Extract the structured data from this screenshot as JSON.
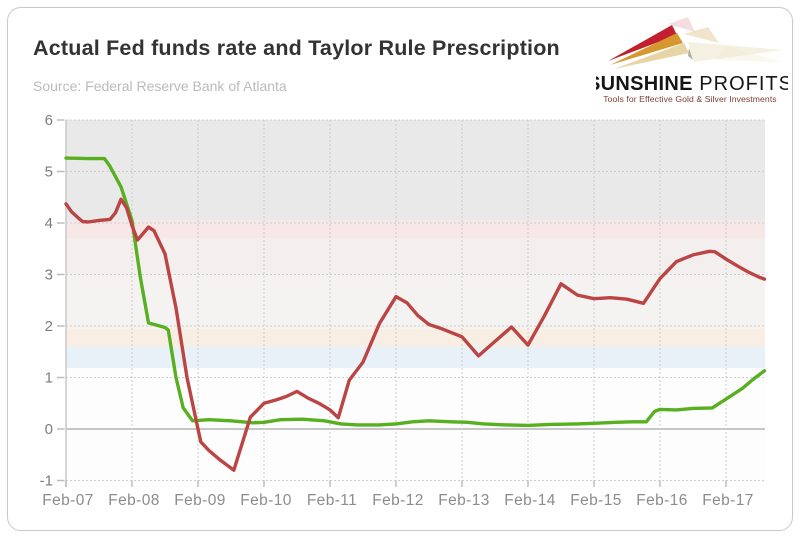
{
  "card": {
    "title": "Actual Fed funds rate and Taylor Rule Prescription",
    "source": "Source: Federal Reserve Bank of Atlanta"
  },
  "logo": {
    "name_bold": "SUNSHINE",
    "name_light": " PROFITS",
    "tagline": "Tools for Effective Gold & Silver Investments",
    "colors": {
      "ray_red": "#c2202f",
      "ray_gold": "#d6982e",
      "ray_cream": "#e8d5a6",
      "ghost_pink": "#eab3b8",
      "ghost_tan": "#e2c48f",
      "ghost_cream": "#efe7cf",
      "text": "#161616",
      "tagline": "#7d4031"
    }
  },
  "chart_data": {
    "type": "line",
    "title": "Actual Fed funds rate and Taylor Rule Prescription",
    "source": "Source: Federal Reserve Bank of Atlanta",
    "xlabel": "",
    "ylabel": "",
    "legend": "none",
    "grid": "dashed",
    "x_axis": {
      "unit": "months since Feb-2007",
      "range_months": [
        0,
        127
      ],
      "tick_months": [
        0,
        12,
        24,
        36,
        48,
        60,
        72,
        84,
        96,
        108,
        120
      ],
      "tick_labels": [
        "Feb-07",
        "Feb-08",
        "Feb-09",
        "Feb-10",
        "Feb-11",
        "Feb-12",
        "Feb-13",
        "Feb-14",
        "Feb-15",
        "Feb-16",
        "Feb-17"
      ]
    },
    "y_axis": {
      "range": [
        -1,
        6
      ],
      "ticks": [
        6,
        5,
        4,
        3,
        2,
        1,
        0,
        -1
      ],
      "zero_line": true
    },
    "colors": {
      "grid": "#cccccc",
      "zero_line": "#c6c6c6",
      "axis": "#c9c9c9",
      "tick": "#bdbdbd",
      "x_label": "#8c8c8c",
      "y_label": "#7c7c7c"
    },
    "background_bands": [
      {
        "from": 4.05,
        "to": 6.0,
        "color": "#e9e9e9"
      },
      {
        "from": 3.7,
        "to": 4.05,
        "color": "#f8e7e7"
      },
      {
        "from": 3.0,
        "to": 3.7,
        "color": "#f3efee"
      },
      {
        "from": 1.95,
        "to": 3.0,
        "color": "#f4f3f2"
      },
      {
        "from": 1.6,
        "to": 1.95,
        "color": "#f9eee3"
      },
      {
        "from": 1.18,
        "to": 1.6,
        "color": "#e9f1f8"
      },
      {
        "from": -1.0,
        "to": 1.18,
        "color": "#fdfdfd"
      }
    ],
    "series": [
      {
        "name": "Actual Fed funds rate",
        "color": "#58b020",
        "width": 3.4,
        "points": [
          [
            0,
            5.26
          ],
          [
            4,
            5.25
          ],
          [
            7,
            5.25
          ],
          [
            8,
            5.1
          ],
          [
            10,
            4.7
          ],
          [
            12,
            4.05
          ],
          [
            13.5,
            2.95
          ],
          [
            15,
            2.06
          ],
          [
            18,
            1.97
          ],
          [
            18.6,
            1.92
          ],
          [
            20,
            1.0
          ],
          [
            21.3,
            0.41
          ],
          [
            23,
            0.16
          ],
          [
            26,
            0.18
          ],
          [
            30,
            0.16
          ],
          [
            34,
            0.12
          ],
          [
            36,
            0.13
          ],
          [
            39,
            0.18
          ],
          [
            43,
            0.19
          ],
          [
            47,
            0.16
          ],
          [
            50,
            0.1
          ],
          [
            53,
            0.08
          ],
          [
            57,
            0.08
          ],
          [
            60,
            0.1
          ],
          [
            63,
            0.14
          ],
          [
            66,
            0.16
          ],
          [
            70,
            0.14
          ],
          [
            73,
            0.13
          ],
          [
            76,
            0.1
          ],
          [
            80,
            0.08
          ],
          [
            84,
            0.07
          ],
          [
            88,
            0.09
          ],
          [
            93,
            0.1
          ],
          [
            96,
            0.11
          ],
          [
            100,
            0.13
          ],
          [
            103,
            0.14
          ],
          [
            105.5,
            0.14
          ],
          [
            107,
            0.34
          ],
          [
            108,
            0.38
          ],
          [
            111,
            0.37
          ],
          [
            114,
            0.4
          ],
          [
            117.5,
            0.41
          ],
          [
            120,
            0.58
          ],
          [
            123,
            0.79
          ],
          [
            125,
            0.97
          ],
          [
            127,
            1.13
          ]
        ]
      },
      {
        "name": "Taylor Rule Prescription",
        "color": "#bb4444",
        "width": 3.4,
        "points": [
          [
            0,
            4.37
          ],
          [
            1,
            4.22
          ],
          [
            2,
            4.12
          ],
          [
            3,
            4.03
          ],
          [
            4,
            4.02
          ],
          [
            6,
            4.05
          ],
          [
            8,
            4.07
          ],
          [
            9,
            4.2
          ],
          [
            10,
            4.46
          ],
          [
            11,
            4.3
          ],
          [
            12,
            3.95
          ],
          [
            13,
            3.67
          ],
          [
            15,
            3.92
          ],
          [
            16,
            3.85
          ],
          [
            18,
            3.4
          ],
          [
            20,
            2.35
          ],
          [
            22,
            1.0
          ],
          [
            24,
            0.0
          ],
          [
            24.5,
            -0.25
          ],
          [
            26,
            -0.42
          ],
          [
            28,
            -0.6
          ],
          [
            30.5,
            -0.8
          ],
          [
            33,
            0.05
          ],
          [
            33.5,
            0.23
          ],
          [
            36,
            0.5
          ],
          [
            38,
            0.56
          ],
          [
            40,
            0.63
          ],
          [
            42,
            0.73
          ],
          [
            44,
            0.6
          ],
          [
            46,
            0.5
          ],
          [
            48,
            0.37
          ],
          [
            49.5,
            0.22
          ],
          [
            51.5,
            0.95
          ],
          [
            54,
            1.3
          ],
          [
            57,
            2.05
          ],
          [
            60,
            2.57
          ],
          [
            62,
            2.45
          ],
          [
            64,
            2.2
          ],
          [
            66,
            2.03
          ],
          [
            68,
            1.96
          ],
          [
            72,
            1.79
          ],
          [
            75,
            1.42
          ],
          [
            78,
            1.7
          ],
          [
            81,
            1.98
          ],
          [
            84,
            1.63
          ],
          [
            87,
            2.2
          ],
          [
            90,
            2.82
          ],
          [
            93,
            2.6
          ],
          [
            96,
            2.53
          ],
          [
            99,
            2.55
          ],
          [
            102,
            2.52
          ],
          [
            105,
            2.44
          ],
          [
            108,
            2.92
          ],
          [
            111,
            3.25
          ],
          [
            114,
            3.38
          ],
          [
            117,
            3.45
          ],
          [
            118,
            3.44
          ],
          [
            120,
            3.3
          ],
          [
            122,
            3.17
          ],
          [
            124,
            3.05
          ],
          [
            126,
            2.95
          ],
          [
            127,
            2.91
          ]
        ]
      }
    ]
  }
}
